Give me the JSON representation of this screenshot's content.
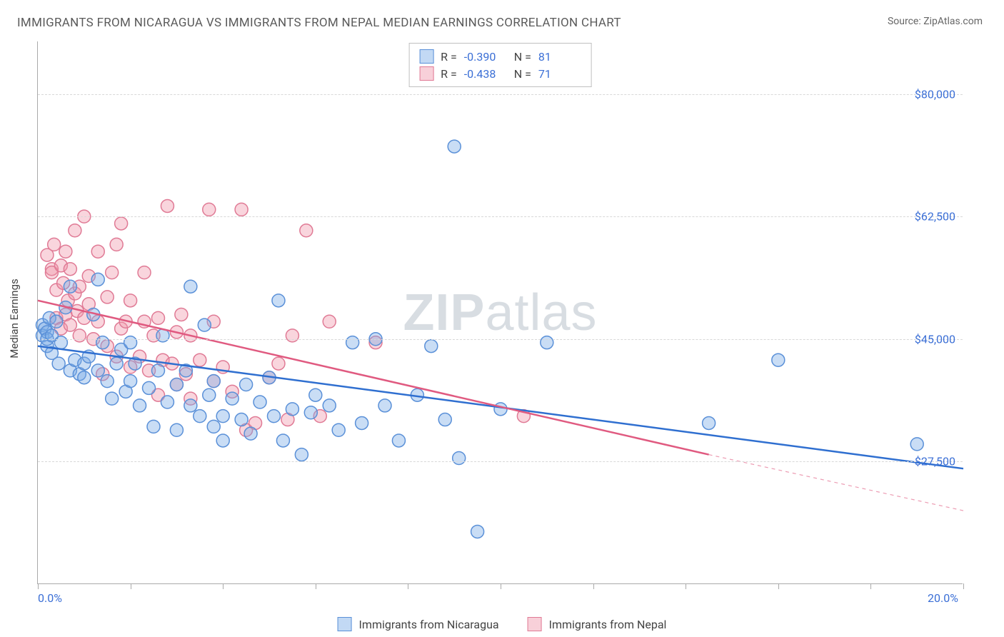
{
  "title": "IMMIGRANTS FROM NICARAGUA VS IMMIGRANTS FROM NEPAL MEDIAN EARNINGS CORRELATION CHART",
  "source_label": "Source: ZipAtlas.com",
  "watermark": "ZIPatlas",
  "y_axis_label": "Median Earnings",
  "chart": {
    "type": "scatter",
    "xlim": [
      0,
      20
    ],
    "ylim": [
      10000,
      87500
    ],
    "x_ticks_minor": [
      0,
      2,
      4,
      6,
      8,
      10,
      12,
      14,
      16,
      18,
      20
    ],
    "x_tick_labels": [
      {
        "v": 0,
        "label": "0.0%"
      },
      {
        "v": 20,
        "label": "20.0%"
      }
    ],
    "y_grid": [
      27500,
      45000,
      62500,
      80000
    ],
    "y_tick_labels": [
      {
        "v": 27500,
        "label": "$27,500"
      },
      {
        "v": 45000,
        "label": "$45,000"
      },
      {
        "v": 62500,
        "label": "$62,500"
      },
      {
        "v": 80000,
        "label": "$80,000"
      }
    ],
    "grid_color": "#d8d8d8",
    "axis_color": "#aaaaaa",
    "tick_label_color": "#3b6fd6",
    "background_color": "#ffffff",
    "marker_radius": 9,
    "marker_stroke_width": 1.5,
    "trend_line_width": 2.5,
    "series": [
      {
        "key": "nicaragua",
        "label": "Immigrants from Nicaragua",
        "fill_color": "rgba(120,170,230,0.40)",
        "stroke_color": "#5a90d8",
        "trend_color": "#2f6fd0",
        "R": "-0.390",
        "N": "81",
        "trend": {
          "x1": 0,
          "y1": 44000,
          "x2": 20,
          "y2": 26500
        },
        "points": [
          [
            0.1,
            47000
          ],
          [
            0.1,
            45500
          ],
          [
            0.15,
            46500
          ],
          [
            0.2,
            44000
          ],
          [
            0.2,
            46000
          ],
          [
            0.2,
            45000
          ],
          [
            0.25,
            48000
          ],
          [
            0.3,
            43000
          ],
          [
            0.3,
            45500
          ],
          [
            0.4,
            47500
          ],
          [
            0.45,
            41500
          ],
          [
            0.5,
            44500
          ],
          [
            0.6,
            49500
          ],
          [
            0.7,
            40500
          ],
          [
            0.7,
            52500
          ],
          [
            0.8,
            42000
          ],
          [
            0.9,
            40000
          ],
          [
            1.0,
            41500
          ],
          [
            1.0,
            39500
          ],
          [
            1.1,
            42500
          ],
          [
            1.2,
            48500
          ],
          [
            1.3,
            40500
          ],
          [
            1.3,
            53500
          ],
          [
            1.4,
            44500
          ],
          [
            1.5,
            39000
          ],
          [
            1.6,
            36500
          ],
          [
            1.7,
            41500
          ],
          [
            1.8,
            43500
          ],
          [
            1.9,
            37500
          ],
          [
            2.0,
            39000
          ],
          [
            2.0,
            44500
          ],
          [
            2.1,
            41500
          ],
          [
            2.2,
            35500
          ],
          [
            2.4,
            38000
          ],
          [
            2.5,
            32500
          ],
          [
            2.6,
            40500
          ],
          [
            2.7,
            45500
          ],
          [
            2.8,
            36000
          ],
          [
            3.0,
            32000
          ],
          [
            3.0,
            38500
          ],
          [
            3.2,
            40500
          ],
          [
            3.3,
            52500
          ],
          [
            3.3,
            35500
          ],
          [
            3.5,
            34000
          ],
          [
            3.6,
            47000
          ],
          [
            3.7,
            37000
          ],
          [
            3.8,
            32500
          ],
          [
            3.8,
            39000
          ],
          [
            4.0,
            34000
          ],
          [
            4.0,
            30500
          ],
          [
            4.2,
            36500
          ],
          [
            4.4,
            33500
          ],
          [
            4.5,
            38500
          ],
          [
            4.6,
            31500
          ],
          [
            4.8,
            36000
          ],
          [
            5.0,
            39500
          ],
          [
            5.1,
            34000
          ],
          [
            5.2,
            50500
          ],
          [
            5.3,
            30500
          ],
          [
            5.5,
            35000
          ],
          [
            5.7,
            28500
          ],
          [
            5.9,
            34500
          ],
          [
            6.0,
            37000
          ],
          [
            6.3,
            35500
          ],
          [
            6.5,
            32000
          ],
          [
            6.8,
            44500
          ],
          [
            7.0,
            33000
          ],
          [
            7.3,
            45000
          ],
          [
            7.5,
            35500
          ],
          [
            7.8,
            30500
          ],
          [
            8.2,
            37000
          ],
          [
            8.5,
            44000
          ],
          [
            8.8,
            33500
          ],
          [
            9.0,
            72500
          ],
          [
            9.1,
            28000
          ],
          [
            9.5,
            17500
          ],
          [
            10.0,
            35000
          ],
          [
            11.0,
            44500
          ],
          [
            14.5,
            33000
          ],
          [
            16.0,
            42000
          ],
          [
            19.0,
            30000
          ]
        ]
      },
      {
        "key": "nepal",
        "label": "Immigrants from Nepal",
        "fill_color": "rgba(240,150,170,0.40)",
        "stroke_color": "#e07a95",
        "trend_color": "#e05a80",
        "R": "-0.438",
        "N": "71",
        "trend": {
          "x1": 0,
          "y1": 50500,
          "x2": 14.5,
          "y2": 28500
        },
        "trend_dashed_ext": {
          "x1": 14.5,
          "y1": 28500,
          "x2": 20,
          "y2": 20500
        },
        "points": [
          [
            0.2,
            57000
          ],
          [
            0.3,
            55000
          ],
          [
            0.3,
            54500
          ],
          [
            0.35,
            58500
          ],
          [
            0.4,
            48000
          ],
          [
            0.4,
            52000
          ],
          [
            0.5,
            46500
          ],
          [
            0.5,
            55500
          ],
          [
            0.55,
            53000
          ],
          [
            0.6,
            48500
          ],
          [
            0.6,
            57500
          ],
          [
            0.65,
            50500
          ],
          [
            0.7,
            47000
          ],
          [
            0.7,
            55000
          ],
          [
            0.8,
            51500
          ],
          [
            0.8,
            60500
          ],
          [
            0.85,
            49000
          ],
          [
            0.9,
            45500
          ],
          [
            0.9,
            52500
          ],
          [
            1.0,
            62500
          ],
          [
            1.0,
            48000
          ],
          [
            1.1,
            50000
          ],
          [
            1.1,
            54000
          ],
          [
            1.2,
            45000
          ],
          [
            1.3,
            57500
          ],
          [
            1.3,
            47500
          ],
          [
            1.4,
            40000
          ],
          [
            1.5,
            51000
          ],
          [
            1.5,
            44000
          ],
          [
            1.6,
            54500
          ],
          [
            1.7,
            42500
          ],
          [
            1.7,
            58500
          ],
          [
            1.8,
            46500
          ],
          [
            1.8,
            61500
          ],
          [
            1.9,
            47500
          ],
          [
            2.0,
            41000
          ],
          [
            2.0,
            50500
          ],
          [
            2.2,
            42500
          ],
          [
            2.3,
            54500
          ],
          [
            2.3,
            47500
          ],
          [
            2.4,
            40500
          ],
          [
            2.5,
            45500
          ],
          [
            2.6,
            37000
          ],
          [
            2.6,
            48000
          ],
          [
            2.7,
            42000
          ],
          [
            2.8,
            64000
          ],
          [
            2.9,
            41500
          ],
          [
            3.0,
            38500
          ],
          [
            3.0,
            46000
          ],
          [
            3.1,
            48500
          ],
          [
            3.2,
            40000
          ],
          [
            3.3,
            45500
          ],
          [
            3.3,
            36500
          ],
          [
            3.5,
            42000
          ],
          [
            3.7,
            63500
          ],
          [
            3.8,
            39000
          ],
          [
            3.8,
            47500
          ],
          [
            4.0,
            41000
          ],
          [
            4.2,
            37500
          ],
          [
            4.4,
            63500
          ],
          [
            4.5,
            32000
          ],
          [
            4.7,
            33000
          ],
          [
            5.0,
            39500
          ],
          [
            5.2,
            41500
          ],
          [
            5.4,
            33500
          ],
          [
            5.5,
            45500
          ],
          [
            5.8,
            60500
          ],
          [
            6.1,
            34000
          ],
          [
            6.3,
            47500
          ],
          [
            7.3,
            44500
          ],
          [
            10.5,
            34000
          ]
        ]
      }
    ]
  },
  "stats_legend": {
    "rows": [
      {
        "series": "nicaragua",
        "R_label": "R =",
        "N_label": "N ="
      },
      {
        "series": "nepal",
        "R_label": "R =",
        "N_label": "N ="
      }
    ]
  }
}
